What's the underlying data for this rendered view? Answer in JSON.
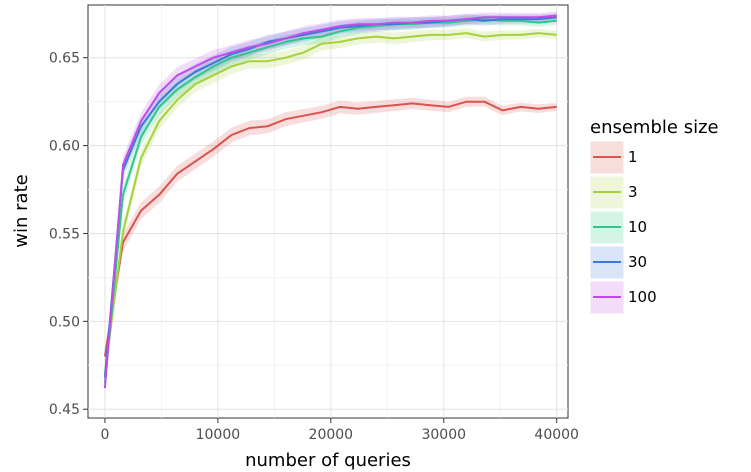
{
  "chart_data": {
    "type": "line",
    "xlabel": "number of queries",
    "ylabel": "win rate",
    "xlim": [
      -1500,
      41000
    ],
    "ylim": [
      0.445,
      0.68
    ],
    "x_ticks": [
      0,
      10000,
      20000,
      30000,
      40000
    ],
    "y_ticks": [
      0.45,
      0.5,
      0.55,
      0.6,
      0.65
    ],
    "x_tick_labels": [
      "0",
      "10000",
      "20000",
      "30000",
      "40000"
    ],
    "y_tick_labels": [
      "0.45",
      "0.50",
      "0.55",
      "0.60",
      "0.65"
    ],
    "grid": true,
    "ribbons": true,
    "legend": {
      "title": "ensemble size",
      "placement": "right"
    },
    "x": [
      0,
      1600,
      3200,
      4800,
      6400,
      8000,
      9600,
      11200,
      12800,
      14400,
      16000,
      17600,
      19200,
      20800,
      22400,
      24000,
      25600,
      27200,
      28800,
      30400,
      32000,
      33600,
      35200,
      36800,
      38400,
      40000
    ],
    "series": [
      {
        "name": "1",
        "color": "#d9534f",
        "values": [
          0.48,
          0.545,
          0.563,
          0.572,
          0.584,
          0.591,
          0.598,
          0.606,
          0.61,
          0.611,
          0.615,
          0.617,
          0.619,
          0.622,
          0.621,
          0.622,
          0.623,
          0.624,
          0.623,
          0.622,
          0.625,
          0.625,
          0.62,
          0.622,
          0.621,
          0.622
        ]
      },
      {
        "name": "3",
        "color": "#a6d13c",
        "values": [
          0.47,
          0.551,
          0.593,
          0.614,
          0.626,
          0.635,
          0.64,
          0.645,
          0.648,
          0.648,
          0.65,
          0.653,
          0.658,
          0.659,
          0.661,
          0.662,
          0.661,
          0.662,
          0.663,
          0.663,
          0.664,
          0.662,
          0.663,
          0.663,
          0.664,
          0.663
        ]
      },
      {
        "name": "10",
        "color": "#2ec98a",
        "values": [
          0.465,
          0.572,
          0.605,
          0.622,
          0.632,
          0.639,
          0.645,
          0.65,
          0.653,
          0.656,
          0.659,
          0.661,
          0.662,
          0.665,
          0.667,
          0.668,
          0.669,
          0.669,
          0.67,
          0.67,
          0.671,
          0.672,
          0.671,
          0.671,
          0.67,
          0.671
        ]
      },
      {
        "name": "30",
        "color": "#3a7bd5",
        "values": [
          0.468,
          0.586,
          0.611,
          0.625,
          0.635,
          0.642,
          0.647,
          0.652,
          0.655,
          0.659,
          0.661,
          0.663,
          0.665,
          0.667,
          0.668,
          0.669,
          0.669,
          0.67,
          0.67,
          0.671,
          0.672,
          0.671,
          0.672,
          0.672,
          0.672,
          0.673
        ]
      },
      {
        "name": "100",
        "color": "#c14de8",
        "values": [
          0.462,
          0.589,
          0.614,
          0.63,
          0.64,
          0.645,
          0.65,
          0.653,
          0.656,
          0.658,
          0.661,
          0.664,
          0.666,
          0.668,
          0.669,
          0.669,
          0.67,
          0.67,
          0.671,
          0.671,
          0.672,
          0.673,
          0.673,
          0.673,
          0.673,
          0.674
        ]
      }
    ]
  }
}
